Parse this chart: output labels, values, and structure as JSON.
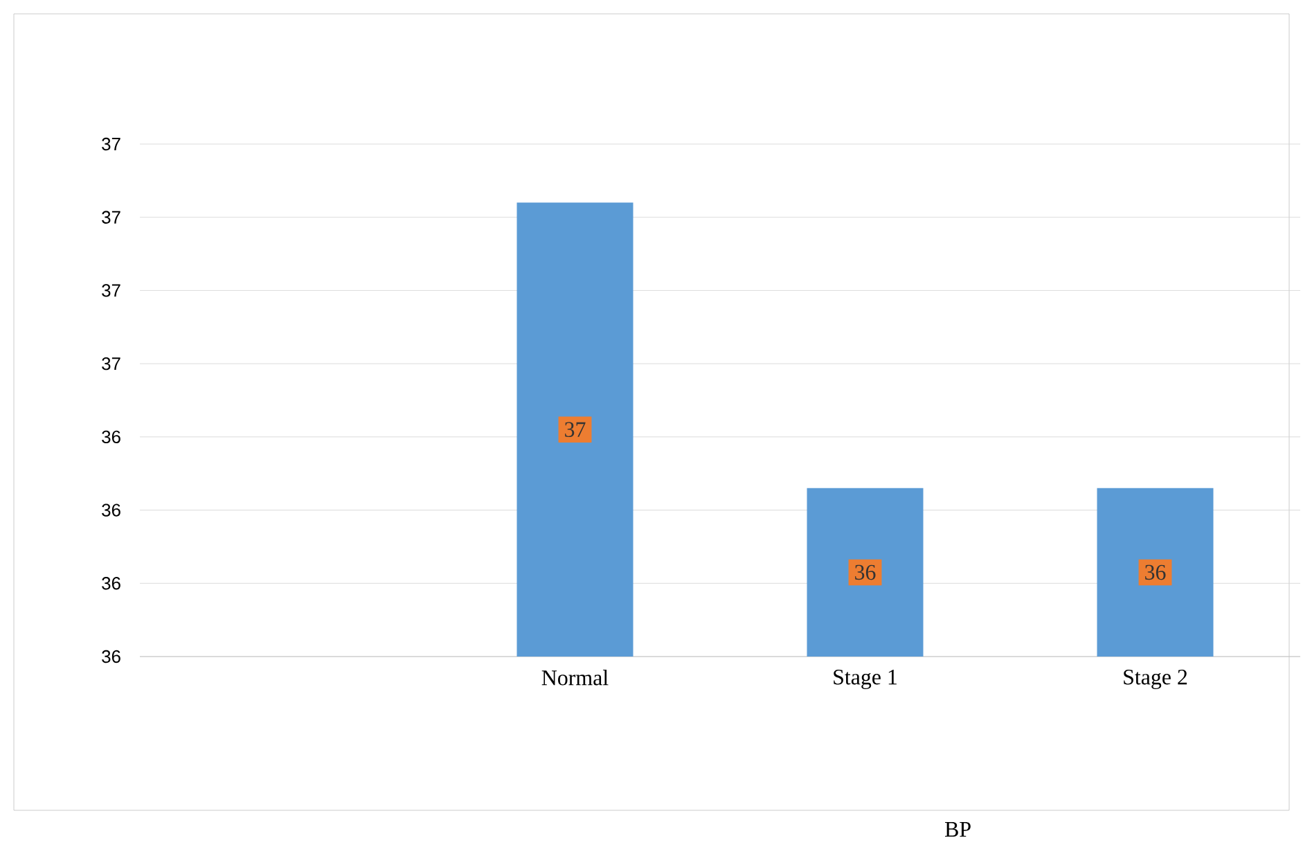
{
  "chart_data": {
    "type": "bar",
    "annotations": [
      "BP"
    ],
    "categories": [
      null,
      "Normal",
      "Stage 1",
      "Stage 2"
    ],
    "values": [
      null,
      36.72,
      36.33,
      36.33
    ],
    "value_labels": [
      null,
      "37",
      "36",
      "36"
    ],
    "color": "#5b9bd5",
    "ylim": [
      36.1,
      36.8
    ],
    "yticks": [
      {
        "value": 36.1,
        "label": "36"
      },
      {
        "value": 36.2,
        "label": "36"
      },
      {
        "value": 36.3,
        "label": "36"
      },
      {
        "value": 36.4,
        "label": "36"
      },
      {
        "value": 36.5,
        "label": "37"
      },
      {
        "value": 36.6,
        "label": "37"
      },
      {
        "value": 36.7,
        "label": "37"
      },
      {
        "value": 36.8,
        "label": "37"
      }
    ],
    "grid": "y"
  }
}
